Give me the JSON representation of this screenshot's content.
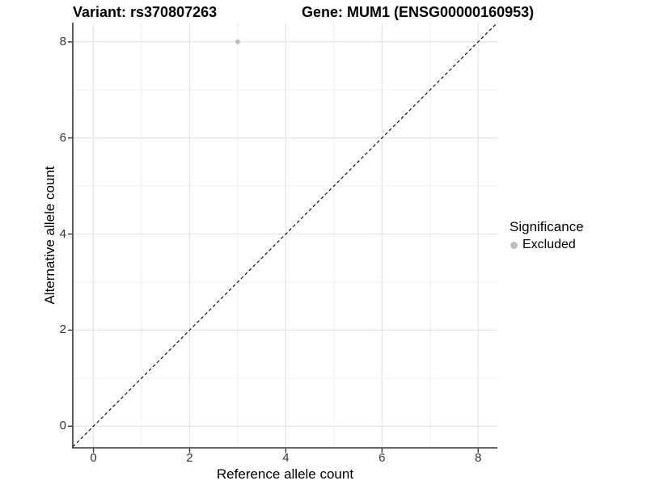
{
  "chart_data": {
    "type": "scatter",
    "title_left": "Variant: rs370807263",
    "title_right": "Gene: MUM1 (ENSG00000160953)",
    "xlabel": "Reference allele count",
    "ylabel": "Alternative allele count",
    "x_ticks": [
      0,
      2,
      4,
      6,
      8
    ],
    "y_ticks": [
      0,
      2,
      4,
      6,
      8
    ],
    "xlim": [
      -0.43,
      8.4
    ],
    "ylim": [
      -0.45,
      8.4
    ],
    "grid": {
      "major": true,
      "minor": true
    },
    "reference_line": {
      "slope": 1,
      "intercept": 0,
      "style": "dashed",
      "color": "#000000"
    },
    "series": [
      {
        "name": "Excluded",
        "color": "#bdbdbd",
        "points": [
          {
            "x": 3,
            "y": 8
          }
        ]
      }
    ],
    "legend": {
      "title": "Significance",
      "position": "right",
      "items": [
        {
          "label": "Excluded",
          "color": "#bdbdbd"
        }
      ]
    }
  },
  "colors": {
    "background": "#ffffff",
    "grid_major": "#e5e5e5",
    "grid_minor": "#efefef",
    "axis_line": "#333333",
    "tick_text": "#333333"
  }
}
